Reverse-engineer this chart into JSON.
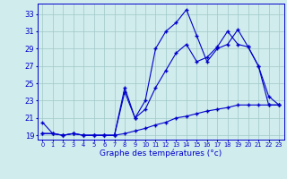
{
  "xlabel": "Graphe des températures (°c)",
  "hours": [
    0,
    1,
    2,
    3,
    4,
    5,
    6,
    7,
    8,
    9,
    10,
    11,
    12,
    13,
    14,
    15,
    16,
    17,
    18,
    19,
    20,
    21,
    22,
    23
  ],
  "seriesA": [
    20.5,
    19.2,
    19.0,
    19.2,
    19.0,
    19.0,
    19.0,
    19.0,
    24.5,
    21.0,
    23.0,
    29.0,
    31.0,
    32.0,
    33.5,
    30.5,
    27.5,
    29.0,
    29.5,
    31.2,
    29.2,
    27.0,
    23.5,
    22.5
  ],
  "seriesB": [
    19.2,
    19.2,
    19.0,
    19.2,
    19.0,
    19.0,
    19.0,
    19.0,
    24.0,
    21.0,
    22.0,
    24.5,
    26.5,
    28.5,
    29.5,
    27.5,
    28.0,
    29.2,
    31.0,
    29.5,
    29.2,
    27.0,
    22.5,
    22.5
  ],
  "seriesC": [
    19.2,
    19.2,
    19.0,
    19.2,
    19.0,
    19.0,
    19.0,
    19.0,
    19.2,
    19.5,
    19.8,
    20.2,
    20.5,
    21.0,
    21.2,
    21.5,
    21.8,
    22.0,
    22.2,
    22.5,
    22.5,
    22.5,
    22.5,
    22.5
  ],
  "ylim_min": 18.5,
  "ylim_max": 34.2,
  "yticks": [
    19,
    21,
    23,
    25,
    27,
    29,
    31,
    33
  ],
  "color": "#0000cc",
  "bg_color": "#d0ecec",
  "grid_color": "#a0c8c8"
}
